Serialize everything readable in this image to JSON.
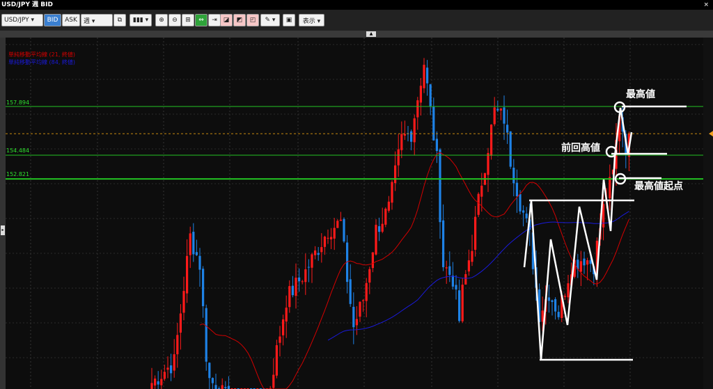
{
  "window": {
    "title": "USD/JPY 週 BID",
    "close": "×"
  },
  "toolbar": {
    "symbol": "USD/JPY ▾",
    "bid": "BID",
    "ask": "ASK",
    "period": "週 ▾",
    "link": "⧉",
    "chart_type": "▮▮▮ ▾",
    "zoom_in": "⊕",
    "zoom_out": "⊖",
    "fit": "⊞",
    "scroll": "⇔",
    "latest": "⇥",
    "draw1": "◪",
    "draw2": "◩",
    "draw3": "◰",
    "pen": "✎ ▾",
    "snapshot": "▣",
    "view": "表示 ▾"
  },
  "legend": {
    "ma21": "単純移動平均線 (21, 終値)",
    "ma84": "単純移動平均線 (84, 終値)",
    "ma21_color": "#d40000",
    "ma84_color": "#1a1adc"
  },
  "price_lines": [
    {
      "label": "157.894",
      "value": 157.894
    },
    {
      "label": "154.484",
      "value": 154.484
    },
    {
      "label": "152.821",
      "value": 152.821
    }
  ],
  "current_price": 155.99,
  "annotations": {
    "high": "最高値",
    "prev_high": "前回高値",
    "high_start": "最高値起点"
  },
  "chart_data": {
    "type": "candlestick",
    "up_color": "#ff1a1a",
    "down_color": "#1e82e6",
    "weekly_close_samples": [
      [
        0,
        138.55
      ],
      [
        7,
        140.02
      ],
      [
        12,
        148.79
      ],
      [
        15,
        146.84
      ],
      [
        17,
        140.51
      ],
      [
        18,
        138.8
      ],
      [
        25,
        137
      ],
      [
        35,
        136
      ],
      [
        42,
        144.4
      ],
      [
        48,
        146.35
      ],
      [
        55,
        149.27
      ],
      [
        59,
        149.76
      ],
      [
        61,
        145.86
      ],
      [
        63,
        142.45
      ],
      [
        66,
        144.4
      ],
      [
        70,
        149.27
      ],
      [
        74,
        150.73
      ],
      [
        78,
        155.61
      ],
      [
        81,
        156.09
      ],
      [
        85,
        160.96
      ],
      [
        87,
        157.55
      ],
      [
        89,
        154.14
      ],
      [
        91,
        146.84
      ],
      [
        94,
        145.86
      ],
      [
        96,
        142.94
      ],
      [
        97,
        144.9
      ],
      [
        100,
        148.3
      ],
      [
        103,
        152.68
      ],
      [
        105,
        155.12
      ],
      [
        107,
        157.55
      ],
      [
        110,
        157.07
      ],
      [
        112,
        154.14
      ],
      [
        115,
        151.22
      ],
      [
        118,
        148.79
      ],
      [
        121,
        143.43
      ],
      [
        124,
        144.9
      ],
      [
        127,
        143.43
      ],
      [
        131,
        146.84
      ],
      [
        135,
        147.32
      ],
      [
        138,
        146.84
      ],
      [
        141,
        150.73
      ],
      [
        144,
        153.17
      ],
      [
        146,
        157.55
      ],
      [
        148,
        155.12
      ],
      [
        149,
        155.99
      ]
    ]
  }
}
